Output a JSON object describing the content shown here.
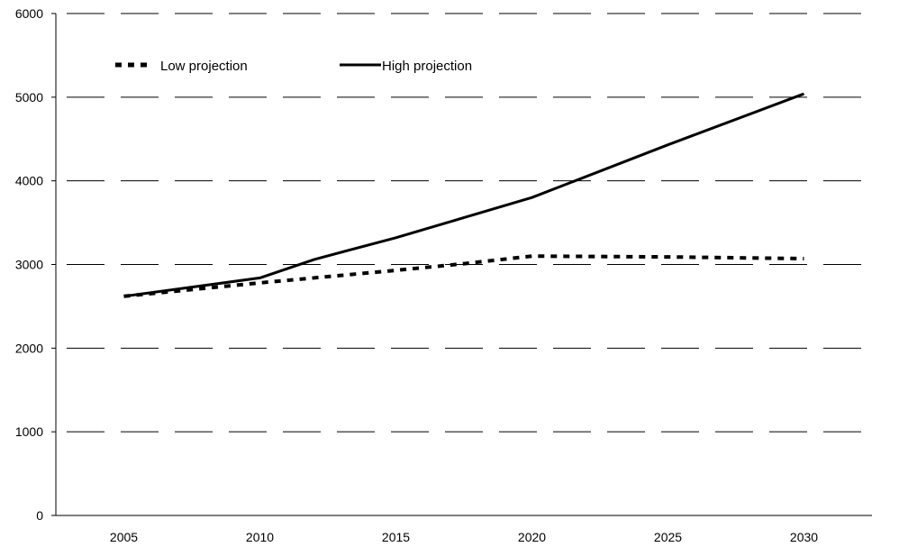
{
  "chart_data": {
    "type": "line",
    "title": "",
    "xlabel": "",
    "ylabel": "",
    "x": [
      2005,
      2010,
      2015,
      2020,
      2025,
      2030
    ],
    "x_ticks": [
      "2005",
      "2010",
      "2015",
      "2020",
      "2025",
      "2030"
    ],
    "y_ticks": [
      "0",
      "1000",
      "2000",
      "3000",
      "4000",
      "5000",
      "6000"
    ],
    "ylim": [
      0,
      6000
    ],
    "grid": "horizontal dashed",
    "legend_position": "top-left",
    "series": [
      {
        "name": "Low projection",
        "style": "dotted",
        "color": "#000000",
        "points": [
          [
            2005,
            2620
          ],
          [
            2010,
            2780
          ],
          [
            2015,
            2930
          ],
          [
            2017.5,
            3010
          ],
          [
            2020,
            3100
          ],
          [
            2025,
            3090
          ],
          [
            2030,
            3070
          ]
        ]
      },
      {
        "name": "High projection",
        "style": "solid",
        "color": "#000000",
        "points": [
          [
            2005,
            2620
          ],
          [
            2010,
            2840
          ],
          [
            2012,
            3060
          ],
          [
            2015,
            3320
          ],
          [
            2020,
            3800
          ],
          [
            2025,
            4430
          ],
          [
            2030,
            5040
          ]
        ]
      }
    ]
  }
}
